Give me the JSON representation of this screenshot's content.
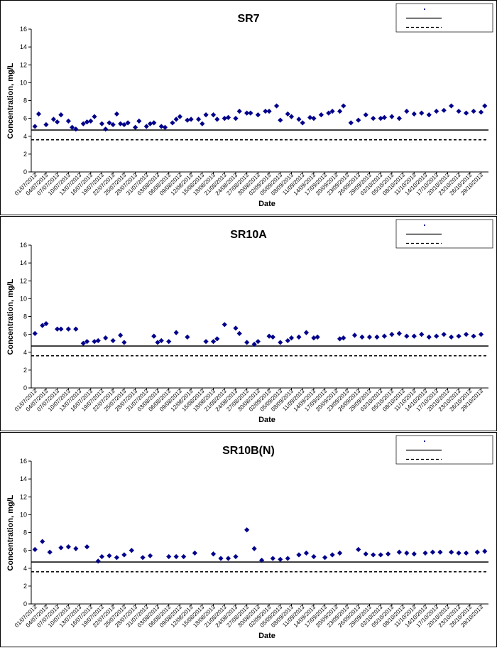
{
  "colors": {
    "marker": "#00008b",
    "line": "#000000"
  },
  "chart_data": [
    {
      "type": "scatter",
      "title": "SR7",
      "xlabel": "Date",
      "ylabel": "Concentration, mg/L",
      "ylim": [
        0,
        16
      ],
      "yticks": [
        0,
        2,
        4,
        6,
        8,
        10,
        12,
        14,
        16
      ],
      "xlim": [
        "2013-06-30",
        "2013-10-31"
      ],
      "xtick_labels": [
        "01/07/2013",
        "04/07/2013",
        "07/07/2013",
        "10/07/2013",
        "13/07/2013",
        "16/07/2013",
        "19/07/2013",
        "22/07/2013",
        "25/07/2013",
        "28/07/2013",
        "31/07/2013",
        "03/08/2013",
        "06/08/2013",
        "09/08/2013",
        "12/08/2013",
        "15/08/2013",
        "18/08/2013",
        "21/08/2013",
        "24/08/2013",
        "27/08/2013",
        "30/08/2013",
        "02/09/2013",
        "05/09/2013",
        "08/09/2013",
        "11/09/2013",
        "14/09/2013",
        "17/09/2013",
        "20/09/2013",
        "23/09/2013",
        "26/09/2013",
        "29/09/2013",
        "02/10/2013",
        "05/10/2013",
        "08/10/2013",
        "11/10/2013",
        "14/10/2013",
        "17/10/2013",
        "20/10/2013",
        "23/10/2013",
        "26/10/2013",
        "29/10/2013"
      ],
      "grid": false,
      "legend_position": "top-right",
      "reference_lines": [
        {
          "style": "solid",
          "y": 4.7
        },
        {
          "style": "dashed",
          "y": 3.6
        }
      ],
      "series": [
        {
          "x": [
            "2013-07-01",
            "2013-07-02",
            "2013-07-04",
            "2013-07-06",
            "2013-07-07",
            "2013-07-08",
            "2013-07-10",
            "2013-07-11",
            "2013-07-12",
            "2013-07-14",
            "2013-07-15",
            "2013-07-16",
            "2013-07-17",
            "2013-07-19",
            "2013-07-20",
            "2013-07-21",
            "2013-07-22",
            "2013-07-23",
            "2013-07-24",
            "2013-07-25",
            "2013-07-26",
            "2013-07-28",
            "2013-07-29",
            "2013-07-31",
            "2013-08-01",
            "2013-08-02",
            "2013-08-04",
            "2013-08-05",
            "2013-08-07",
            "2013-08-08",
            "2013-08-09",
            "2013-08-11",
            "2013-08-12",
            "2013-08-14",
            "2013-08-15",
            "2013-08-16",
            "2013-08-18",
            "2013-08-19",
            "2013-08-21",
            "2013-08-22",
            "2013-08-24",
            "2013-08-25",
            "2013-08-27",
            "2013-08-28",
            "2013-08-30",
            "2013-09-01",
            "2013-09-02",
            "2013-09-04",
            "2013-09-05",
            "2013-09-07",
            "2013-09-08",
            "2013-09-10",
            "2013-09-11",
            "2013-09-13",
            "2013-09-14",
            "2013-09-16",
            "2013-09-18",
            "2013-09-19",
            "2013-09-21",
            "2013-09-22",
            "2013-09-24",
            "2013-09-26",
            "2013-09-28",
            "2013-09-30",
            "2013-10-02",
            "2013-10-03",
            "2013-10-05",
            "2013-10-07",
            "2013-10-09",
            "2013-10-11",
            "2013-10-13",
            "2013-10-15",
            "2013-10-17",
            "2013-10-19",
            "2013-10-21",
            "2013-10-23",
            "2013-10-25",
            "2013-10-27",
            "2013-10-29",
            "2013-10-30"
          ],
          "y": [
            5.1,
            6.5,
            5.3,
            5.9,
            5.6,
            6.4,
            5.7,
            5.0,
            4.8,
            5.4,
            5.6,
            5.7,
            6.2,
            5.4,
            4.8,
            5.5,
            5.3,
            6.5,
            5.4,
            5.3,
            5.5,
            5.0,
            5.7,
            5.1,
            5.4,
            5.5,
            5.1,
            5.0,
            5.5,
            5.9,
            6.2,
            5.8,
            5.9,
            5.9,
            5.4,
            6.4,
            6.4,
            5.9,
            6.0,
            6.1,
            6.0,
            6.8,
            6.6,
            6.6,
            6.4,
            6.8,
            6.8,
            7.4,
            5.8,
            6.5,
            6.2,
            5.9,
            5.5,
            6.1,
            6.0,
            6.4,
            6.6,
            6.8,
            6.8,
            7.4,
            5.5,
            5.8,
            6.4,
            6.0,
            6.0,
            6.1,
            6.2,
            6.0,
            6.8,
            6.5,
            6.6,
            6.4,
            6.8,
            6.9,
            7.4,
            6.8,
            6.6,
            6.8,
            6.7,
            7.4
          ]
        }
      ]
    },
    {
      "type": "scatter",
      "title": "SR10A",
      "xlabel": "Date",
      "ylabel": "Concentration, mg/L",
      "ylim": [
        0,
        16
      ],
      "yticks": [
        0,
        2,
        4,
        6,
        8,
        10,
        12,
        14,
        16
      ],
      "xlim": [
        "2013-06-30",
        "2013-10-31"
      ],
      "xtick_labels": [
        "01/07/2013",
        "04/07/2013",
        "07/07/2013",
        "10/07/2013",
        "13/07/2013",
        "16/07/2013",
        "19/07/2013",
        "22/07/2013",
        "25/07/2013",
        "28/07/2013",
        "31/07/2013",
        "03/08/2013",
        "06/08/2013",
        "09/08/2013",
        "12/08/2013",
        "15/08/2013",
        "18/08/2013",
        "21/08/2013",
        "24/08/2013",
        "27/08/2013",
        "30/08/2013",
        "02/09/2013",
        "05/09/2013",
        "08/09/2013",
        "11/09/2013",
        "14/09/2013",
        "17/09/2013",
        "20/09/2013",
        "23/09/2013",
        "26/09/2013",
        "29/09/2013",
        "02/10/2013",
        "05/10/2013",
        "08/10/2013",
        "11/10/2013",
        "14/10/2013",
        "17/10/2013",
        "20/10/2013",
        "23/10/2013",
        "26/10/2013",
        "29/10/2013"
      ],
      "grid": false,
      "legend_position": "top-right",
      "reference_lines": [
        {
          "style": "solid",
          "y": 4.7
        },
        {
          "style": "dashed",
          "y": 3.6
        }
      ],
      "series": [
        {
          "x": [
            "2013-07-01",
            "2013-07-03",
            "2013-07-04",
            "2013-07-07",
            "2013-07-08",
            "2013-07-10",
            "2013-07-12",
            "2013-07-14",
            "2013-07-15",
            "2013-07-17",
            "2013-07-18",
            "2013-07-20",
            "2013-07-22",
            "2013-07-24",
            "2013-07-25",
            "2013-08-02",
            "2013-08-03",
            "2013-08-04",
            "2013-08-06",
            "2013-08-08",
            "2013-08-11",
            "2013-08-16",
            "2013-08-18",
            "2013-08-19",
            "2013-08-21",
            "2013-08-24",
            "2013-08-25",
            "2013-08-27",
            "2013-08-29",
            "2013-08-30",
            "2013-09-02",
            "2013-09-03",
            "2013-09-05",
            "2013-09-07",
            "2013-09-08",
            "2013-09-10",
            "2013-09-12",
            "2013-09-14",
            "2013-09-15",
            "2013-09-21",
            "2013-09-22",
            "2013-09-25",
            "2013-09-27",
            "2013-09-29",
            "2013-10-01",
            "2013-10-03",
            "2013-10-05",
            "2013-10-07",
            "2013-10-09",
            "2013-10-11",
            "2013-10-13",
            "2013-10-15",
            "2013-10-17",
            "2013-10-19",
            "2013-10-21",
            "2013-10-23",
            "2013-10-25",
            "2013-10-27",
            "2013-10-29"
          ],
          "y": [
            6.1,
            7.0,
            7.2,
            6.6,
            6.6,
            6.6,
            6.6,
            5.0,
            5.2,
            5.2,
            5.3,
            5.6,
            5.3,
            5.9,
            5.1,
            5.8,
            5.1,
            5.3,
            5.2,
            6.2,
            5.7,
            5.2,
            5.2,
            5.5,
            7.1,
            6.7,
            6.1,
            5.1,
            4.9,
            5.2,
            5.8,
            5.7,
            5.1,
            5.3,
            5.6,
            5.7,
            6.2,
            5.6,
            5.7,
            5.5,
            5.6,
            5.9,
            5.7,
            5.7,
            5.7,
            5.8,
            6.0,
            6.1,
            5.8,
            5.8,
            6.0,
            5.7,
            5.8,
            6.0,
            5.7,
            5.8,
            6.0,
            5.8,
            6.0
          ]
        }
      ]
    },
    {
      "type": "scatter",
      "title": "SR10B(N)",
      "xlabel": "Date",
      "ylabel": "Concentration, mg/L",
      "ylim": [
        0,
        16
      ],
      "yticks": [
        0,
        2,
        4,
        6,
        8,
        10,
        12,
        14,
        16
      ],
      "xlim": [
        "2013-06-30",
        "2013-10-31"
      ],
      "xtick_labels": [
        "01/07/2013",
        "04/07/2013",
        "07/07/2013",
        "10/07/2013",
        "13/07/2013",
        "16/07/2013",
        "19/07/2013",
        "22/07/2013",
        "25/07/2013",
        "28/07/2013",
        "31/07/2013",
        "03/08/2013",
        "06/08/2013",
        "09/08/2013",
        "12/08/2013",
        "15/08/2013",
        "18/08/2013",
        "21/08/2013",
        "24/08/2013",
        "27/08/2013",
        "30/08/2013",
        "02/09/2013",
        "05/09/2013",
        "08/09/2013",
        "11/09/2013",
        "14/09/2013",
        "17/09/2013",
        "20/09/2013",
        "23/09/2013",
        "26/09/2013",
        "29/09/2013",
        "02/10/2013",
        "05/10/2013",
        "08/10/2013",
        "11/10/2013",
        "14/10/2013",
        "17/10/2013",
        "20/10/2013",
        "23/10/2013",
        "26/10/2013",
        "29/10/2013"
      ],
      "grid": false,
      "legend_position": "top-right",
      "reference_lines": [
        {
          "style": "solid",
          "y": 4.7
        },
        {
          "style": "dashed",
          "y": 3.6
        }
      ],
      "series": [
        {
          "x": [
            "2013-07-01",
            "2013-07-03",
            "2013-07-05",
            "2013-07-08",
            "2013-07-10",
            "2013-07-12",
            "2013-07-15",
            "2013-07-18",
            "2013-07-19",
            "2013-07-21",
            "2013-07-23",
            "2013-07-25",
            "2013-07-27",
            "2013-07-30",
            "2013-08-01",
            "2013-08-06",
            "2013-08-08",
            "2013-08-10",
            "2013-08-13",
            "2013-08-18",
            "2013-08-20",
            "2013-08-22",
            "2013-08-24",
            "2013-08-27",
            "2013-08-29",
            "2013-08-31",
            "2013-09-03",
            "2013-09-05",
            "2013-09-07",
            "2013-09-10",
            "2013-09-12",
            "2013-09-14",
            "2013-09-17",
            "2013-09-19",
            "2013-09-21",
            "2013-09-26",
            "2013-09-28",
            "2013-09-30",
            "2013-10-02",
            "2013-10-04",
            "2013-10-07",
            "2013-10-09",
            "2013-10-11",
            "2013-10-14",
            "2013-10-16",
            "2013-10-18",
            "2013-10-21",
            "2013-10-23",
            "2013-10-25",
            "2013-10-28",
            "2013-10-30"
          ],
          "y": [
            6.1,
            7.0,
            5.8,
            6.3,
            6.4,
            6.2,
            6.4,
            4.8,
            5.3,
            5.4,
            5.2,
            5.5,
            6.0,
            5.2,
            5.4,
            5.3,
            5.3,
            5.3,
            5.7,
            5.6,
            5.1,
            5.1,
            5.3,
            8.3,
            6.2,
            4.9,
            5.1,
            5.0,
            5.1,
            5.5,
            5.7,
            5.3,
            5.2,
            5.5,
            5.7,
            6.1,
            5.6,
            5.5,
            5.5,
            5.6,
            5.8,
            5.7,
            5.6,
            5.7,
            5.8,
            5.8,
            5.8,
            5.7,
            5.7,
            5.8,
            5.9
          ]
        }
      ]
    }
  ]
}
